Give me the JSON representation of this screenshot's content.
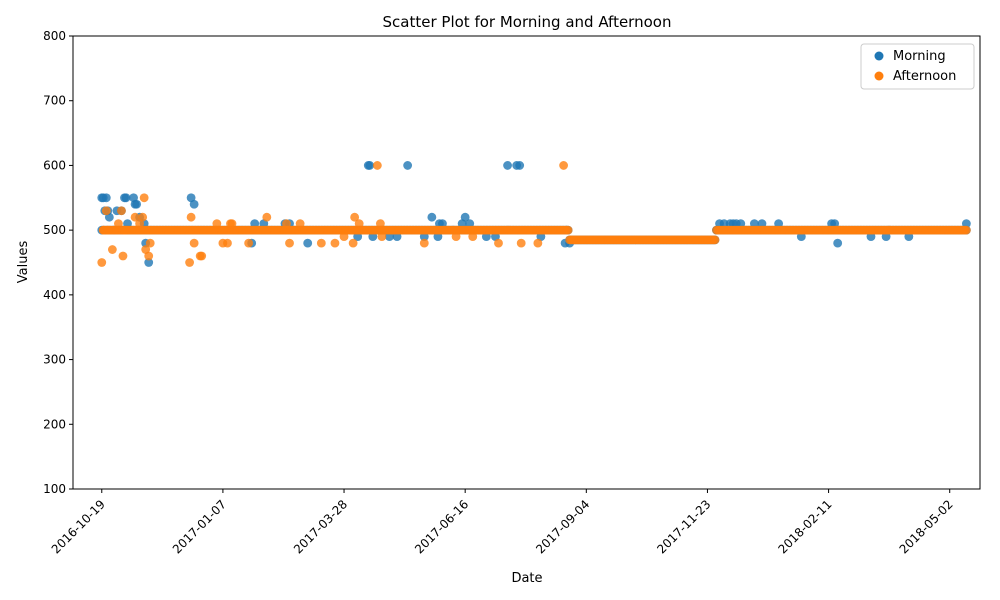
{
  "chart_data": {
    "type": "scatter",
    "title": "Scatter Plot for Morning and Afternoon",
    "xlabel": "Date",
    "ylabel": "Values",
    "x_axis_type": "date",
    "xlim": [
      "2016-09-30",
      "2018-05-22"
    ],
    "ylim": [
      100,
      800
    ],
    "x_ticks": [
      "2016-10-19",
      "2017-01-07",
      "2017-03-28",
      "2017-06-16",
      "2017-09-04",
      "2017-11-23",
      "2018-02-11",
      "2018-05-02"
    ],
    "y_ticks": [
      100,
      200,
      300,
      400,
      500,
      600,
      700,
      800
    ],
    "grid": false,
    "legend_position": "top-right",
    "series": [
      {
        "name": "Morning",
        "color": "#1f77b4",
        "points": [
          [
            "2016-10-19",
            550
          ],
          [
            "2016-10-20",
            550
          ],
          [
            "2016-10-21",
            530
          ],
          [
            "2016-10-22",
            550
          ],
          [
            "2016-10-23",
            530
          ],
          [
            "2016-10-24",
            520
          ],
          [
            "2016-10-27",
            500
          ],
          [
            "2016-10-29",
            530
          ],
          [
            "2016-11-01",
            530
          ],
          [
            "2016-11-03",
            550
          ],
          [
            "2016-11-04",
            550
          ],
          [
            "2016-11-05",
            510
          ],
          [
            "2016-11-09",
            550
          ],
          [
            "2016-11-10",
            540
          ],
          [
            "2016-11-11",
            540
          ],
          [
            "2016-11-13",
            520
          ],
          [
            "2016-11-16",
            510
          ],
          [
            "2016-11-17",
            480
          ],
          [
            "2016-11-19",
            450
          ],
          [
            "2016-12-17",
            550
          ],
          [
            "2016-12-19",
            540
          ],
          [
            "2017-01-26",
            480
          ],
          [
            "2017-01-28",
            510
          ],
          [
            "2017-02-03",
            510
          ],
          [
            "2017-02-17",
            510
          ],
          [
            "2017-02-20",
            510
          ],
          [
            "2017-03-04",
            480
          ],
          [
            "2017-04-06",
            490
          ],
          [
            "2017-04-13",
            600
          ],
          [
            "2017-04-14",
            600
          ],
          [
            "2017-04-16",
            490
          ],
          [
            "2017-04-27",
            490
          ],
          [
            "2017-05-02",
            490
          ],
          [
            "2017-05-09",
            600
          ],
          [
            "2017-05-20",
            490
          ],
          [
            "2017-05-25",
            520
          ],
          [
            "2017-05-29",
            490
          ],
          [
            "2017-05-30",
            510
          ],
          [
            "2017-06-01",
            510
          ],
          [
            "2017-06-08",
            500
          ],
          [
            "2017-06-14",
            510
          ],
          [
            "2017-06-16",
            520
          ],
          [
            "2017-06-19",
            510
          ],
          [
            "2017-06-30",
            490
          ],
          [
            "2017-07-06",
            490
          ],
          [
            "2017-07-14",
            600
          ],
          [
            "2017-07-20",
            600
          ],
          [
            "2017-07-22",
            600
          ],
          [
            "2017-08-05",
            490
          ],
          [
            "2017-08-21",
            480
          ],
          [
            "2017-08-22",
            500
          ],
          [
            "2017-08-24",
            480
          ],
          [
            "2017-11-29",
            500
          ],
          [
            "2017-12-01",
            510
          ],
          [
            "2017-12-04",
            510
          ],
          [
            "2017-12-08",
            510
          ],
          [
            "2017-12-10",
            510
          ],
          [
            "2017-12-12",
            510
          ],
          [
            "2017-12-15",
            510
          ],
          [
            "2017-12-24",
            510
          ],
          [
            "2017-12-29",
            510
          ],
          [
            "2018-01-09",
            510
          ],
          [
            "2018-01-24",
            490
          ],
          [
            "2018-02-13",
            510
          ],
          [
            "2018-02-15",
            510
          ],
          [
            "2018-02-17",
            480
          ],
          [
            "2018-03-11",
            490
          ],
          [
            "2018-03-21",
            490
          ],
          [
            "2018-04-05",
            490
          ],
          [
            "2018-05-13",
            510
          ]
        ],
        "baseline": {
          "ranges": [
            [
              "2016-10-19",
              "2017-08-23",
              500
            ],
            [
              "2017-08-24",
              "2017-11-28",
              485
            ],
            [
              "2017-11-29",
              "2018-05-13",
              500
            ]
          ]
        }
      },
      {
        "name": "Afternoon",
        "color": "#ff7f0e",
        "points": [
          [
            "2016-10-19",
            450
          ],
          [
            "2016-10-20",
            500
          ],
          [
            "2016-10-22",
            530
          ],
          [
            "2016-10-23",
            500
          ],
          [
            "2016-10-26",
            470
          ],
          [
            "2016-10-30",
            510
          ],
          [
            "2016-11-01",
            530
          ],
          [
            "2016-11-02",
            460
          ],
          [
            "2016-11-03",
            500
          ],
          [
            "2016-11-10",
            520
          ],
          [
            "2016-11-13",
            510
          ],
          [
            "2016-11-15",
            520
          ],
          [
            "2016-11-16",
            550
          ],
          [
            "2016-11-17",
            470
          ],
          [
            "2016-11-19",
            460
          ],
          [
            "2016-11-20",
            480
          ],
          [
            "2016-12-16",
            450
          ],
          [
            "2016-12-17",
            520
          ],
          [
            "2016-12-19",
            480
          ],
          [
            "2016-12-23",
            460
          ],
          [
            "2016-12-24",
            460
          ],
          [
            "2017-01-03",
            510
          ],
          [
            "2017-01-07",
            480
          ],
          [
            "2017-01-10",
            480
          ],
          [
            "2017-01-12",
            510
          ],
          [
            "2017-01-13",
            510
          ],
          [
            "2017-01-24",
            480
          ],
          [
            "2017-02-05",
            520
          ],
          [
            "2017-02-18",
            510
          ],
          [
            "2017-02-20",
            480
          ],
          [
            "2017-02-27",
            510
          ],
          [
            "2017-03-13",
            480
          ],
          [
            "2017-03-22",
            480
          ],
          [
            "2017-03-28",
            490
          ],
          [
            "2017-04-03",
            480
          ],
          [
            "2017-04-04",
            520
          ],
          [
            "2017-04-07",
            510
          ],
          [
            "2017-04-19",
            600
          ],
          [
            "2017-04-21",
            510
          ],
          [
            "2017-04-22",
            490
          ],
          [
            "2017-05-20",
            480
          ],
          [
            "2017-06-10",
            490
          ],
          [
            "2017-06-21",
            490
          ],
          [
            "2017-07-08",
            480
          ],
          [
            "2017-07-23",
            480
          ],
          [
            "2017-08-03",
            480
          ],
          [
            "2017-08-20",
            600
          ]
        ],
        "baseline": {
          "ranges": [
            [
              "2016-10-20",
              "2017-08-23",
              500
            ],
            [
              "2017-08-24",
              "2017-11-28",
              485
            ],
            [
              "2017-11-29",
              "2018-05-13",
              500
            ]
          ]
        }
      }
    ]
  }
}
